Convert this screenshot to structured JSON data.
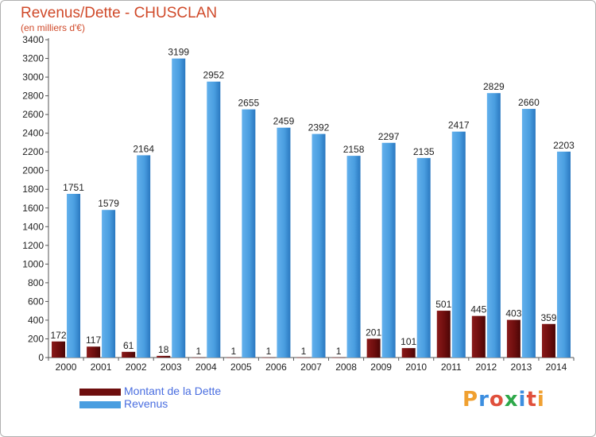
{
  "title": "Revenus/Dette - CHUSCLAN",
  "subtitle": "(en milliers d'€)",
  "logo": {
    "text": "Proxiti",
    "colors": [
      "#f0a030",
      "#3c8ee0",
      "#e0503c",
      "#2ea84a",
      "#3c8ee0",
      "#e0503c",
      "#f0a030"
    ]
  },
  "legend": [
    {
      "label": "Montant de la Dette",
      "color": "#6e0e0e"
    },
    {
      "label": "Revenus",
      "color": "#4a9ee0"
    }
  ],
  "chart_data": {
    "type": "bar",
    "title": "Revenus/Dette - CHUSCLAN",
    "subtitle": "(en milliers d'€)",
    "xlabel": "",
    "ylabel": "",
    "categories": [
      "2000",
      "2001",
      "2002",
      "2003",
      "2004",
      "2005",
      "2006",
      "2007",
      "2008",
      "2009",
      "2010",
      "2011",
      "2012",
      "2013",
      "2014"
    ],
    "series": [
      {
        "name": "Montant de la Dette",
        "color": "#6e0e0e",
        "values": [
          172,
          117,
          61,
          18,
          1,
          1,
          1,
          1,
          1,
          201,
          101,
          501,
          445,
          403,
          359
        ]
      },
      {
        "name": "Revenus",
        "color": "#4a9ee0",
        "values": [
          1751,
          1579,
          2164,
          3199,
          2952,
          2655,
          2459,
          2392,
          2158,
          2297,
          2135,
          2417,
          2829,
          2660,
          2203
        ]
      }
    ],
    "ylim": [
      0,
      3400
    ],
    "yticks": [
      0,
      200,
      400,
      600,
      800,
      1000,
      1200,
      1400,
      1600,
      1800,
      2000,
      2200,
      2400,
      2600,
      2800,
      3000,
      3200,
      3400
    ],
    "grid": false,
    "legend_position": "bottom-left"
  }
}
